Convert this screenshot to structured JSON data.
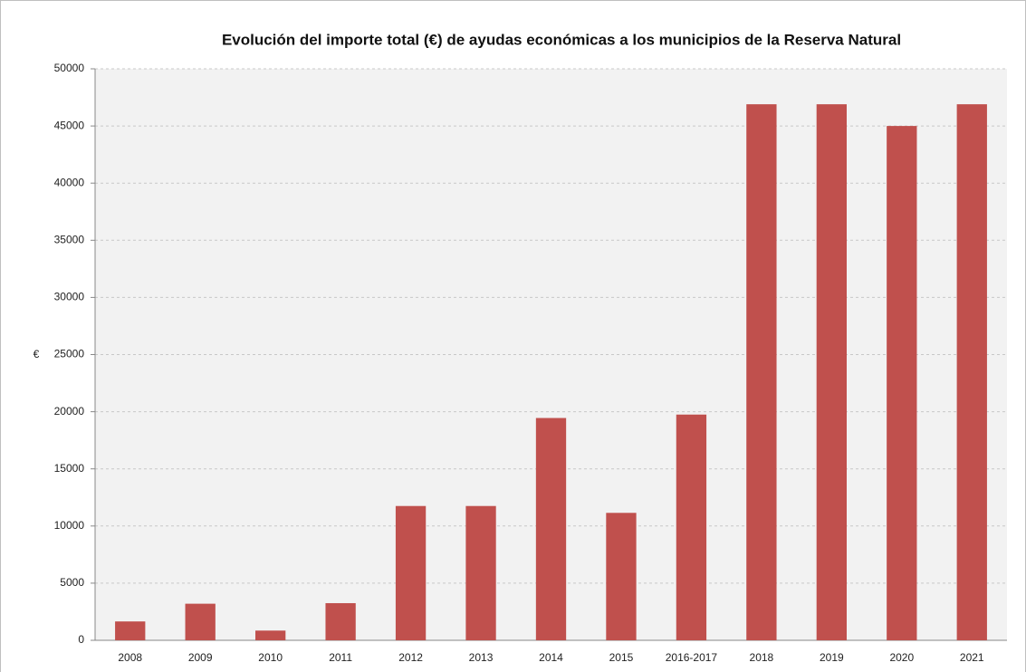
{
  "chart_data": {
    "type": "bar",
    "title": "Evolución del importe total (€) de ayudas económicas a los municipios de la Reserva Natural",
    "y_label": "€",
    "categories": [
      "2008",
      "2009",
      "2010",
      "2011",
      "2012",
      "2013",
      "2014",
      "2015",
      "2016-2017",
      "2018",
      "2019",
      "2020",
      "2021"
    ],
    "values": [
      1650,
      3200,
      850,
      3250,
      11750,
      11750,
      19450,
      11150,
      19750,
      46900,
      46900,
      45000,
      46900
    ],
    "color": "#c0504d",
    "ylim": [
      0,
      50000
    ],
    "yticks": [
      0,
      5000,
      10000,
      15000,
      20000,
      25000,
      30000,
      35000,
      40000,
      45000,
      50000
    ],
    "grid": true
  }
}
